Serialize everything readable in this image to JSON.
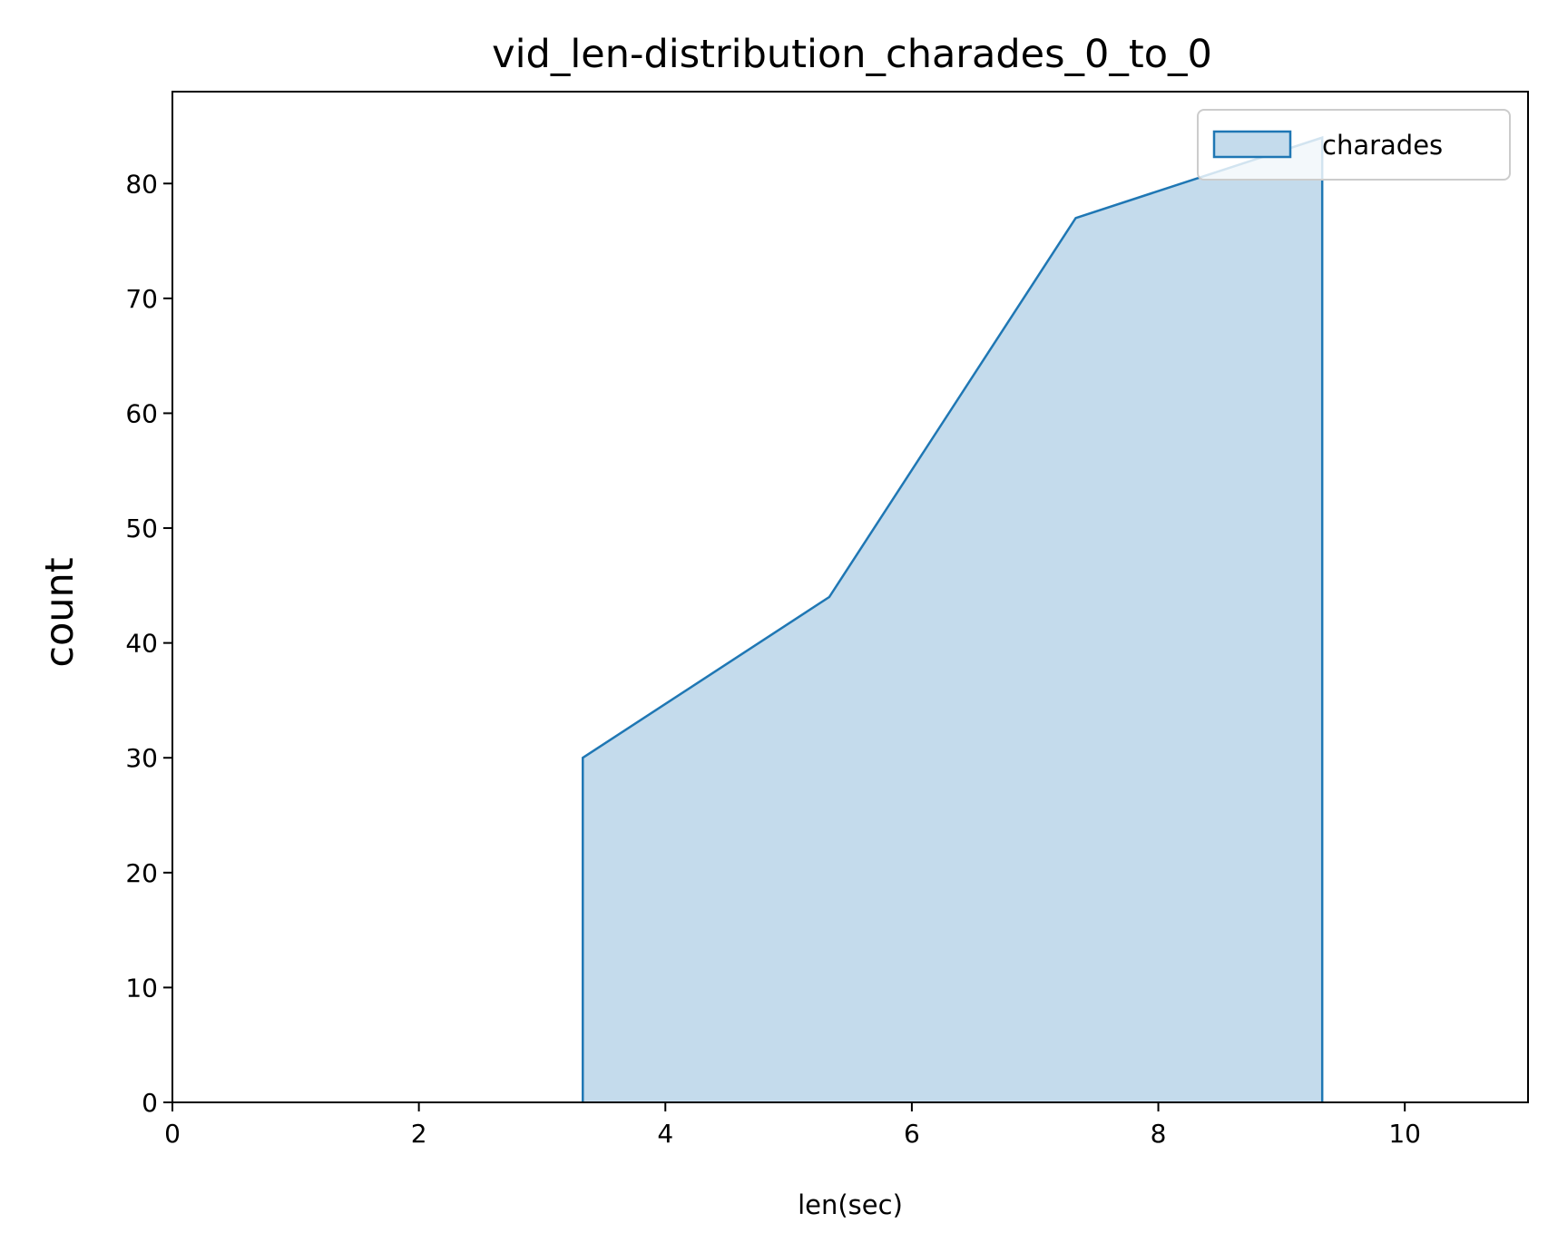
{
  "chart_data": {
    "type": "area",
    "title": "vid_len-distribution_charades_0_to_0",
    "xlabel": "len(sec)",
    "ylabel": "count",
    "xlim": [
      0,
      11
    ],
    "ylim": [
      0,
      88
    ],
    "xticks": [
      0,
      2,
      4,
      6,
      8,
      10
    ],
    "yticks": [
      0,
      10,
      20,
      30,
      40,
      50,
      60,
      70,
      80
    ],
    "grid": false,
    "legend_position": "top-right",
    "series": [
      {
        "name": "charades",
        "x": [
          3.33,
          3.33,
          5.33,
          7.33,
          9.33,
          9.33
        ],
        "y": [
          0,
          30,
          44,
          77,
          84,
          0
        ],
        "fill_color": "#c4dbec",
        "line_color": "#1f77b4"
      }
    ]
  }
}
